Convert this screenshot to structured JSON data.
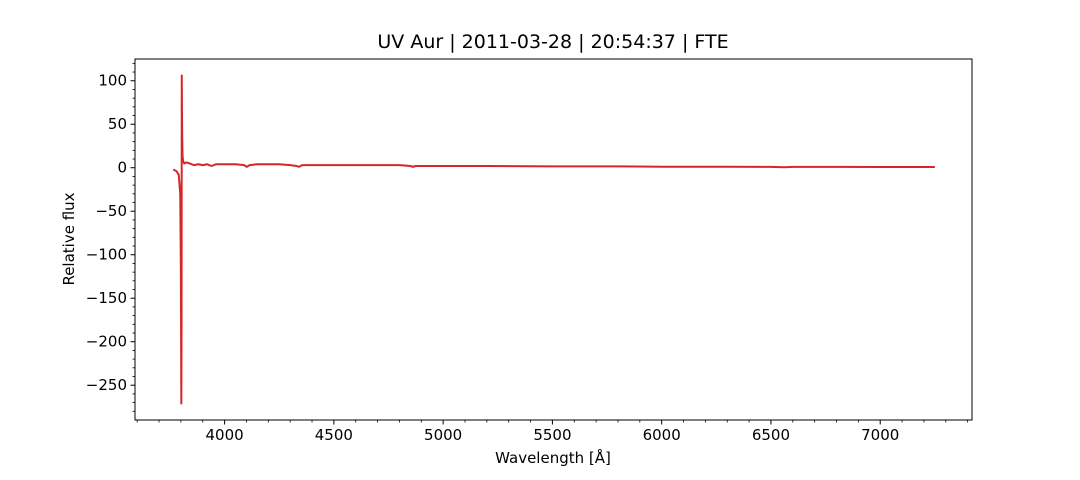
{
  "chart_data": {
    "type": "line",
    "title": "UV Aur | 2011-03-28 | 20:54:37 | FTE",
    "xlabel": "Wavelength [Å]",
    "ylabel": "Relative flux",
    "xlim": [
      3590,
      7420
    ],
    "ylim": [
      -290,
      125
    ],
    "x_ticks": [
      4000,
      4500,
      5000,
      5500,
      6000,
      6500,
      7000
    ],
    "y_ticks": [
      100,
      50,
      0,
      -50,
      -100,
      -150,
      -200,
      -250
    ],
    "y_tick_labels": [
      "100",
      "50",
      "0",
      "−50",
      "−100",
      "−150",
      "−200",
      "−250"
    ],
    "grid": false,
    "series": [
      {
        "color": "#d62728",
        "x": [
          3765,
          3780,
          3790,
          3797,
          3800,
          3802,
          3803,
          3804,
          3805,
          3806,
          3807,
          3808,
          3810,
          3815,
          3825,
          3840,
          3860,
          3880,
          3900,
          3920,
          3940,
          3960,
          3980,
          4000,
          4050,
          4090,
          4101,
          4115,
          4150,
          4200,
          4250,
          4300,
          4330,
          4340,
          4355,
          4400,
          4500,
          4600,
          4700,
          4800,
          4850,
          4861,
          4875,
          4900,
          5000,
          5200,
          5500,
          5800,
          6000,
          6300,
          6500,
          6563,
          6600,
          6800,
          7000,
          7250
        ],
        "y": [
          -2,
          -4,
          -8,
          -30,
          -120,
          -271,
          -180,
          106,
          60,
          35,
          20,
          12,
          8,
          5,
          6,
          5,
          3,
          4,
          3,
          4,
          2,
          4,
          4,
          4,
          4,
          3,
          1,
          3,
          4,
          4,
          4,
          3,
          2,
          1,
          3,
          3,
          3,
          3,
          3,
          3,
          2,
          1,
          2,
          2,
          2,
          2,
          1.5,
          1.5,
          1.2,
          1.2,
          1,
          0.5,
          1,
          1,
          0.8,
          0.8
        ]
      }
    ]
  }
}
